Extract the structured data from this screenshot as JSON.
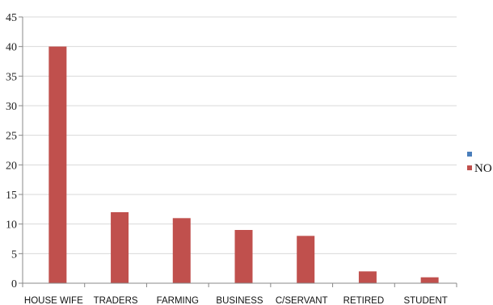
{
  "chart_data": {
    "type": "bar",
    "categories": [
      "HOUSE WIFE",
      "TRADERS",
      "FARMING",
      "BUSINESS",
      "C/SERVANT",
      "RETIRED",
      "STUDENT"
    ],
    "series": [
      {
        "name": "",
        "color": "#4a7ebb",
        "values": [
          0,
          0,
          0,
          0,
          0,
          0,
          0
        ]
      },
      {
        "name": "NO",
        "color": "#c0504d",
        "values": [
          40,
          12,
          11,
          9,
          8,
          2,
          1
        ]
      }
    ],
    "yticks": [
      0,
      5,
      10,
      15,
      20,
      25,
      30,
      35,
      40,
      45
    ],
    "ylim": [
      0,
      45
    ],
    "grid": true,
    "legend": "right"
  }
}
